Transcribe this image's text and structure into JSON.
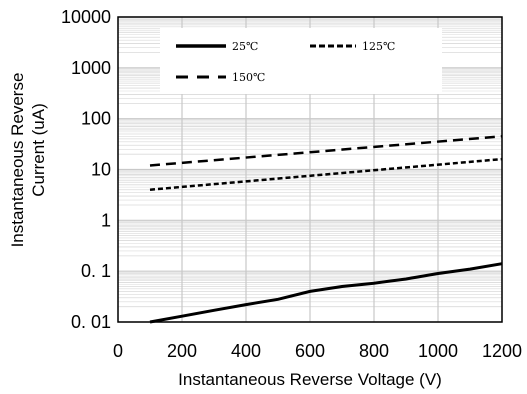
{
  "chart_data": {
    "type": "line",
    "title": "",
    "xlabel": "Instantaneous Reverse Voltage (V)",
    "ylabel_lines": [
      "Instantaneous Reverse",
      "Current (uA)"
    ],
    "xlim": [
      0,
      1200
    ],
    "ylim": [
      0.01,
      10000
    ],
    "y_scale": "log",
    "x_ticks": [
      0,
      200,
      400,
      600,
      800,
      1000,
      1200
    ],
    "x_tick_labels": [
      "0",
      "200",
      "400",
      "600",
      "800",
      "1000",
      "1200"
    ],
    "y_ticks": [
      0.01,
      0.1,
      1,
      10,
      100,
      1000,
      10000
    ],
    "y_tick_labels": [
      "0. 01",
      "0. 1",
      "1",
      "10",
      "100",
      "1000",
      "10000"
    ],
    "grid": true,
    "legend_position": "top",
    "series": [
      {
        "name": "25℃",
        "style": "solid",
        "x": [
          100,
          200,
          300,
          400,
          500,
          600,
          700,
          800,
          900,
          1000,
          1100,
          1200
        ],
        "y": [
          0.01,
          0.013,
          0.017,
          0.022,
          0.028,
          0.04,
          0.05,
          0.058,
          0.07,
          0.09,
          0.11,
          0.14
        ]
      },
      {
        "name": "125℃",
        "style": "dotted",
        "x": [
          100,
          1200
        ],
        "y": [
          4,
          16
        ]
      },
      {
        "name": "150℃",
        "style": "dashed",
        "x": [
          100,
          1200
        ],
        "y": [
          12,
          45
        ]
      }
    ]
  },
  "colors": {
    "line": "#000000",
    "grid_major": "#c8c8c8",
    "grid_minor": "#dadada"
  }
}
